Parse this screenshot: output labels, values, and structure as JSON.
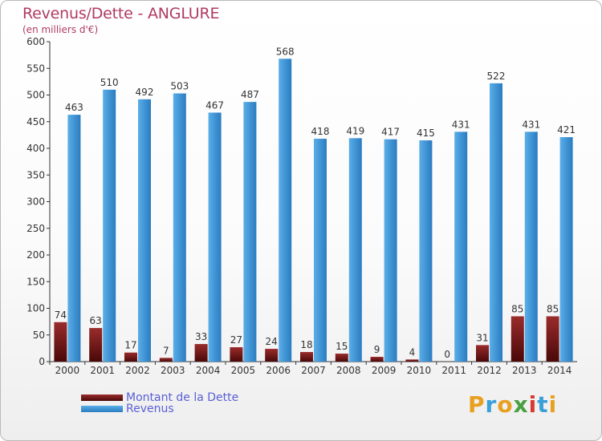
{
  "colors": {
    "revenus_top": "#5aaee8",
    "revenus_bottom": "#2a7cc0",
    "dette_top": "#9a2c2c",
    "dette_bottom": "#4a0808",
    "title": "#b03a62",
    "legend_text": "#5a5fd6"
  },
  "chart_data": {
    "type": "bar",
    "title": "Revenus/Dette - ANGLURE",
    "subtitle": "(en milliers d'€)",
    "xlabel": "",
    "ylabel": "",
    "ylim": [
      0,
      600
    ],
    "yticks": [
      0,
      50,
      100,
      150,
      200,
      250,
      300,
      350,
      400,
      450,
      500,
      550,
      600
    ],
    "grid": false,
    "legend_position": "bottom-left",
    "categories": [
      "2000",
      "2001",
      "2002",
      "2003",
      "2004",
      "2005",
      "2006",
      "2007",
      "2008",
      "2009",
      "2010",
      "2011",
      "2012",
      "2013",
      "2014"
    ],
    "series": [
      {
        "name": "Montant de la Dette",
        "values": [
          74,
          63,
          17,
          7,
          33,
          27,
          24,
          18,
          15,
          9,
          4,
          0,
          31,
          85,
          85
        ]
      },
      {
        "name": "Revenus",
        "values": [
          463,
          510,
          492,
          503,
          467,
          487,
          568,
          418,
          419,
          417,
          415,
          431,
          522,
          431,
          421
        ]
      }
    ]
  },
  "logo": {
    "letters": [
      "P",
      "r",
      "o",
      "x",
      "i",
      "t",
      "i"
    ],
    "colors": [
      "#e8a020",
      "#3aa0d8",
      "#e8a020",
      "#4aa040",
      "#d83a30",
      "#3aa0d8",
      "#e8a020"
    ]
  }
}
